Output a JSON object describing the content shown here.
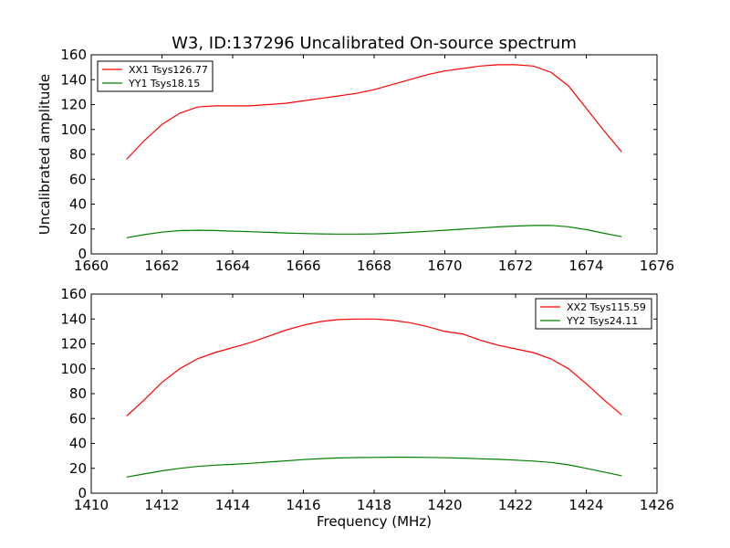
{
  "figure": {
    "title": "W3, ID:137296 Uncalibrated On-source spectrum"
  },
  "chart_data": [
    {
      "type": "line",
      "title": "W3, ID:137296 Uncalibrated On-source spectrum",
      "xlabel": "",
      "ylabel": "Uncalibrated amplitude",
      "xlim": [
        1660,
        1676
      ],
      "ylim": [
        0,
        160
      ],
      "xticks": [
        "1660",
        "1662",
        "1664",
        "1666",
        "1668",
        "1670",
        "1672",
        "1674",
        "1676"
      ],
      "yticks": [
        "0",
        "20",
        "40",
        "60",
        "80",
        "100",
        "120",
        "140",
        "160"
      ],
      "legend_position": "upper-left",
      "grid": false,
      "series": [
        {
          "name": "XX1 Tsys126.77",
          "color": "#ff0000",
          "x": [
            1661.0,
            1661.5,
            1662.0,
            1662.5,
            1663.0,
            1663.5,
            1664.0,
            1664.5,
            1665.0,
            1665.5,
            1666.0,
            1666.5,
            1667.0,
            1667.5,
            1668.0,
            1668.5,
            1669.0,
            1669.5,
            1670.0,
            1670.5,
            1671.0,
            1671.5,
            1672.0,
            1672.5,
            1673.0,
            1673.5,
            1674.0,
            1674.5,
            1675.0
          ],
          "y": [
            76,
            91,
            104,
            113,
            118,
            119,
            119,
            119,
            120,
            121,
            123,
            125,
            127,
            129,
            132,
            136,
            140,
            144,
            147,
            149,
            151,
            152,
            152,
            151,
            146,
            135,
            117,
            99,
            82
          ]
        },
        {
          "name": "YY1 Tsys18.15",
          "color": "#008000",
          "x": [
            1661.0,
            1661.5,
            1662.0,
            1662.5,
            1663.0,
            1663.5,
            1664.0,
            1664.5,
            1665.0,
            1665.5,
            1666.0,
            1666.5,
            1667.0,
            1667.5,
            1668.0,
            1668.5,
            1669.0,
            1669.5,
            1670.0,
            1670.5,
            1671.0,
            1671.5,
            1672.0,
            1672.5,
            1673.0,
            1673.5,
            1674.0,
            1674.5,
            1675.0
          ],
          "y": [
            13,
            15.5,
            17.5,
            18.7,
            19,
            18.8,
            18.3,
            17.8,
            17.3,
            16.8,
            16.4,
            16.1,
            15.9,
            15.9,
            16.1,
            16.6,
            17.3,
            18.1,
            19,
            19.9,
            20.8,
            21.7,
            22.4,
            22.8,
            22.9,
            21.8,
            19.5,
            16.6,
            13.8
          ]
        }
      ]
    },
    {
      "type": "line",
      "title": "",
      "xlabel": "Frequency (MHz)",
      "ylabel": "",
      "xlim": [
        1410,
        1426
      ],
      "ylim": [
        0,
        160
      ],
      "xticks": [
        "1410",
        "1412",
        "1414",
        "1416",
        "1418",
        "1420",
        "1422",
        "1424",
        "1426"
      ],
      "yticks": [
        "0",
        "20",
        "40",
        "60",
        "80",
        "100",
        "120",
        "140",
        "160"
      ],
      "legend_position": "upper-right",
      "grid": false,
      "series": [
        {
          "name": "XX2 Tsys115.59",
          "color": "#ff0000",
          "x": [
            1411.0,
            1411.5,
            1412.0,
            1412.5,
            1413.0,
            1413.5,
            1414.0,
            1414.5,
            1415.0,
            1415.5,
            1416.0,
            1416.5,
            1417.0,
            1417.5,
            1418.0,
            1418.5,
            1419.0,
            1419.5,
            1420.0,
            1420.5,
            1421.0,
            1421.5,
            1422.0,
            1422.5,
            1423.0,
            1423.5,
            1424.0,
            1424.5,
            1425.0
          ],
          "y": [
            62,
            75,
            89,
            100,
            108,
            113,
            117,
            121,
            126,
            131,
            135,
            138,
            139.5,
            140,
            140,
            139,
            137,
            134,
            130,
            128,
            123,
            119,
            116,
            113,
            108,
            100,
            88,
            75,
            63
          ]
        },
        {
          "name": "YY2 Tsys24.11",
          "color": "#008000",
          "x": [
            1411.0,
            1411.5,
            1412.0,
            1412.5,
            1413.0,
            1413.5,
            1414.0,
            1414.5,
            1415.0,
            1415.5,
            1416.0,
            1416.5,
            1417.0,
            1417.5,
            1418.0,
            1418.5,
            1419.0,
            1419.5,
            1420.0,
            1420.5,
            1421.0,
            1421.5,
            1422.0,
            1422.5,
            1423.0,
            1423.5,
            1424.0,
            1424.5,
            1425.0
          ],
          "y": [
            13,
            15.5,
            18,
            20,
            21.5,
            22.5,
            23.2,
            24,
            25,
            26,
            27,
            27.8,
            28.3,
            28.6,
            28.8,
            28.9,
            28.9,
            28.8,
            28.5,
            28.2,
            27.7,
            27.2,
            26.6,
            25.8,
            24.7,
            22.8,
            20,
            17,
            14
          ]
        }
      ]
    }
  ]
}
